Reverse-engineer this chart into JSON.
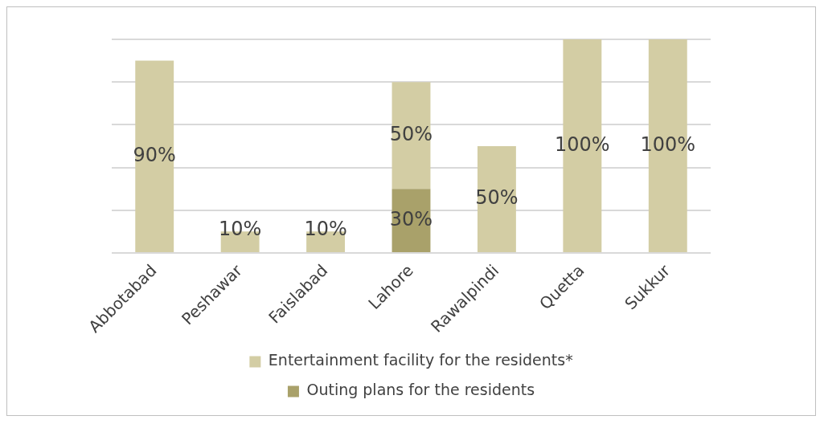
{
  "chart_data": {
    "type": "bar",
    "stacked": true,
    "categories": [
      "Abbotabad",
      "Peshawar",
      "Faislabad",
      "Lahore",
      "Rawalpindi",
      "Quetta",
      "Sukkur"
    ],
    "series": [
      {
        "name": "Outing plans for the residents",
        "color": "#a9a16a",
        "values": [
          null,
          null,
          null,
          30,
          null,
          null,
          null
        ],
        "value_labels": [
          null,
          null,
          null,
          "30%",
          null,
          null,
          null
        ]
      },
      {
        "name": "Entertainment facility for the residents*",
        "color": "#d3cda4",
        "values": [
          90,
          10,
          10,
          50,
          50,
          100,
          100
        ],
        "value_labels": [
          "90%",
          "10%",
          "10%",
          "50%",
          "50%",
          "100%",
          "100%"
        ]
      }
    ],
    "ylim": [
      0,
      100
    ],
    "yticks": [
      {
        "value": 0,
        "label": null
      },
      {
        "value": 20,
        "label": null
      },
      {
        "value": 40,
        "label": null
      },
      {
        "value": 60,
        "label": null
      },
      {
        "value": 80,
        "label": null
      },
      {
        "value": 100,
        "label": null
      }
    ],
    "tick_labels": "x",
    "grid": "y",
    "legend": "bottom"
  }
}
